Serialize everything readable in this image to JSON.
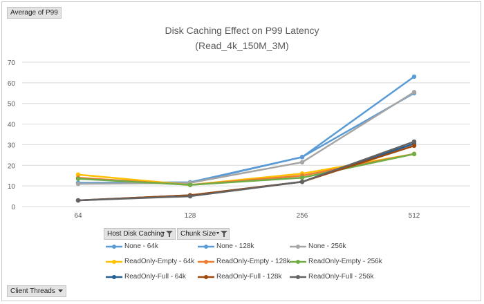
{
  "pivot": {
    "value_field": "Average of P99",
    "legend_fields": [
      "Host Disk Caching",
      "Chunk Size"
    ],
    "axis_field": "Client Threads"
  },
  "icons": {
    "filter": "filter-dropdown-icon",
    "dropdown": "chevron-down-icon"
  },
  "chart_data": {
    "type": "line",
    "title_line1": "Disk Caching Effect on P99 Latency",
    "title_line2": "(Read_4k_150M_3M)",
    "categories": [
      "64",
      "128",
      "256",
      "512"
    ],
    "ylim": [
      0,
      70
    ],
    "yticks": [
      0,
      10,
      20,
      30,
      40,
      50,
      60,
      70
    ],
    "grid": true,
    "legend_position": "bottom",
    "series": [
      {
        "name": "None - 64k",
        "color": "#5b9bd5",
        "values": [
          11.5,
          11.8,
          24,
          63
        ]
      },
      {
        "name": "None - 128k",
        "color": "#5b9bd5",
        "values": [
          11.5,
          11.5,
          24,
          55
        ]
      },
      {
        "name": "None - 256k",
        "color": "#a5a5a5",
        "values": [
          11,
          11.5,
          21.5,
          55.5
        ]
      },
      {
        "name": "ReadOnly-Empty - 64k",
        "color": "#ffc000",
        "values": [
          15.5,
          10.5,
          16,
          25.5
        ]
      },
      {
        "name": "ReadOnly-Empty - 128k",
        "color": "#ed7d31",
        "values": [
          14,
          10.5,
          15,
          25.5
        ]
      },
      {
        "name": "ReadOnly-Empty - 256k",
        "color": "#70ad47",
        "values": [
          13.5,
          10.5,
          14,
          25.5
        ]
      },
      {
        "name": "ReadOnly-Full - 64k",
        "color": "#255e91",
        "values": [
          3,
          5.5,
          12,
          30.5
        ]
      },
      {
        "name": "ReadOnly-Full - 128k",
        "color": "#9e480e",
        "values": [
          3,
          5.5,
          12,
          29.5
        ]
      },
      {
        "name": "ReadOnly-Full - 256k",
        "color": "#636363",
        "values": [
          3,
          5,
          12,
          31.5
        ]
      }
    ]
  }
}
